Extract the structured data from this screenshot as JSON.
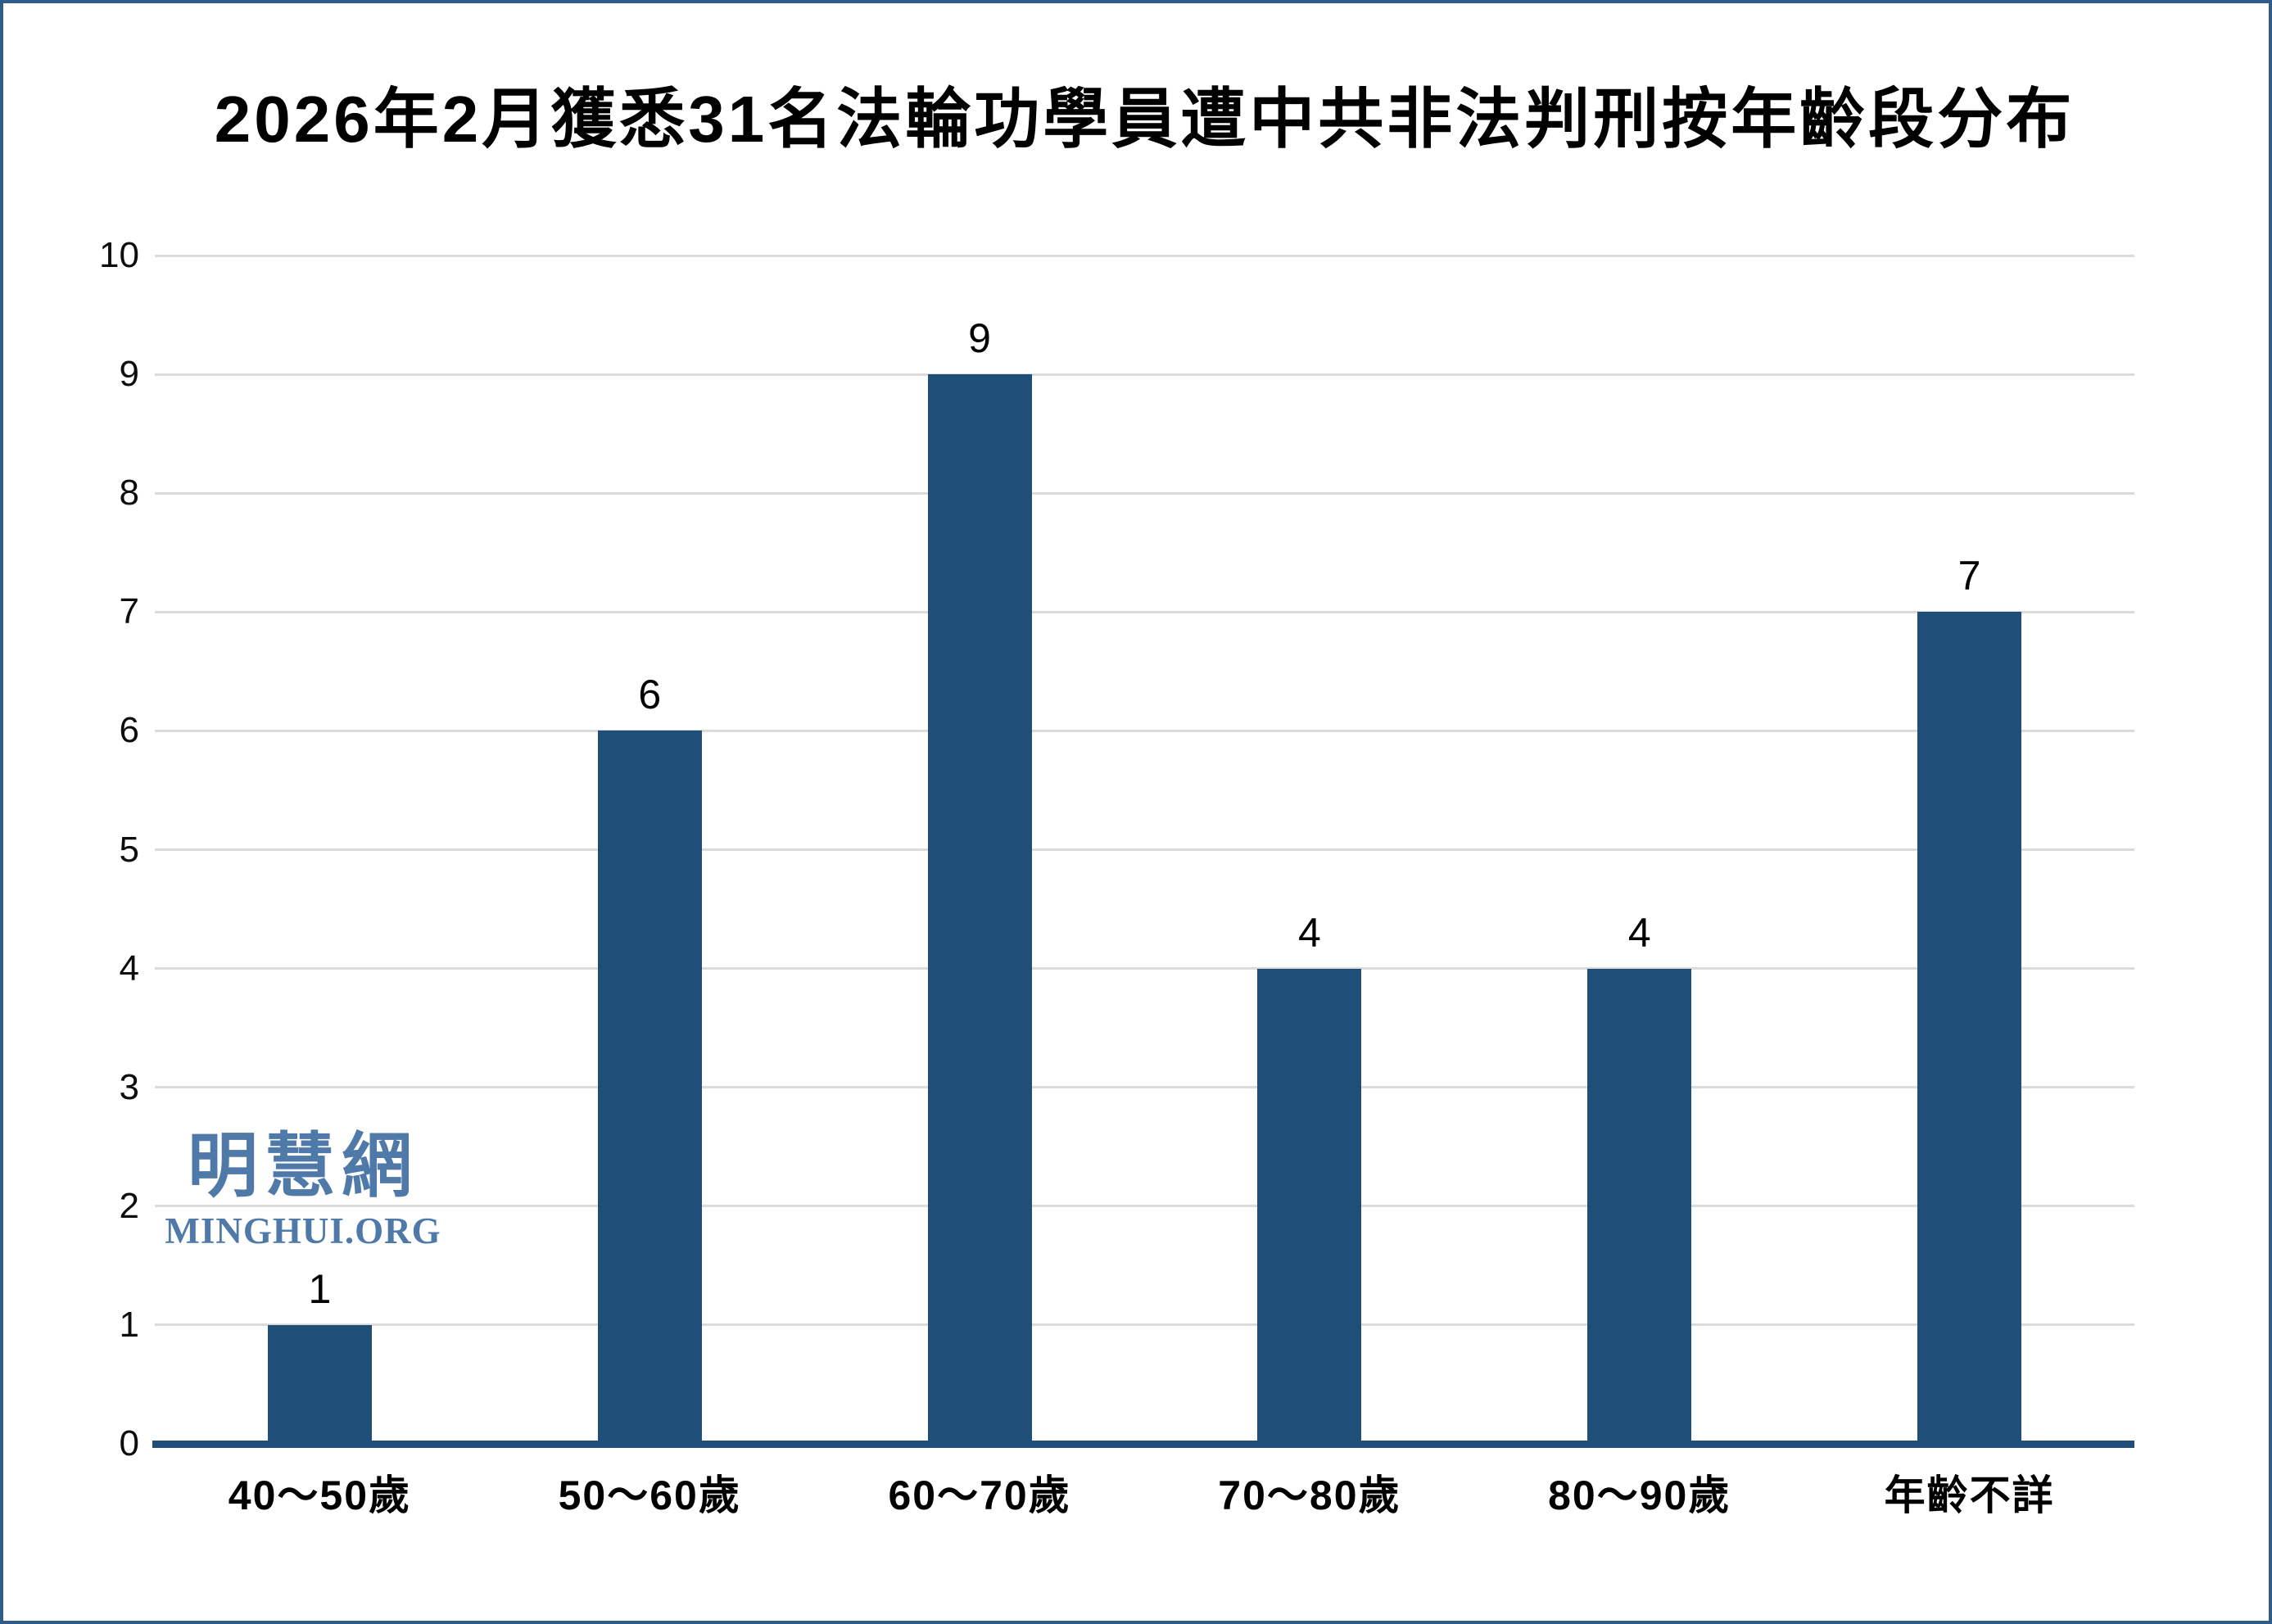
{
  "chart_data": {
    "type": "bar",
    "title": "2026年2月獲悉31名法輪功學員遭中共非法判刑按年齡段分布",
    "categories": [
      "40～50歲",
      "50～60歲",
      "60～70歲",
      "70～80歲",
      "80～90歲",
      "年齡不詳"
    ],
    "values": [
      1,
      6,
      9,
      4,
      4,
      7
    ],
    "xlabel": "",
    "ylabel": "",
    "ylim": [
      0,
      10
    ],
    "ytick_interval": 1,
    "yticks": [
      0,
      1,
      2,
      3,
      4,
      5,
      6,
      7,
      8,
      9,
      10
    ],
    "grid": "horizontal",
    "legend": "none",
    "bar_color": "#1F4E79",
    "axis_line_color": "#1F4E79",
    "gridline_color": "#DBDBDB"
  },
  "watermark": {
    "chinese": "明慧網",
    "latin": "MINGHUI.ORG",
    "color": "#4E79A8"
  },
  "frame": {
    "border_color": "#2F5C8C"
  }
}
